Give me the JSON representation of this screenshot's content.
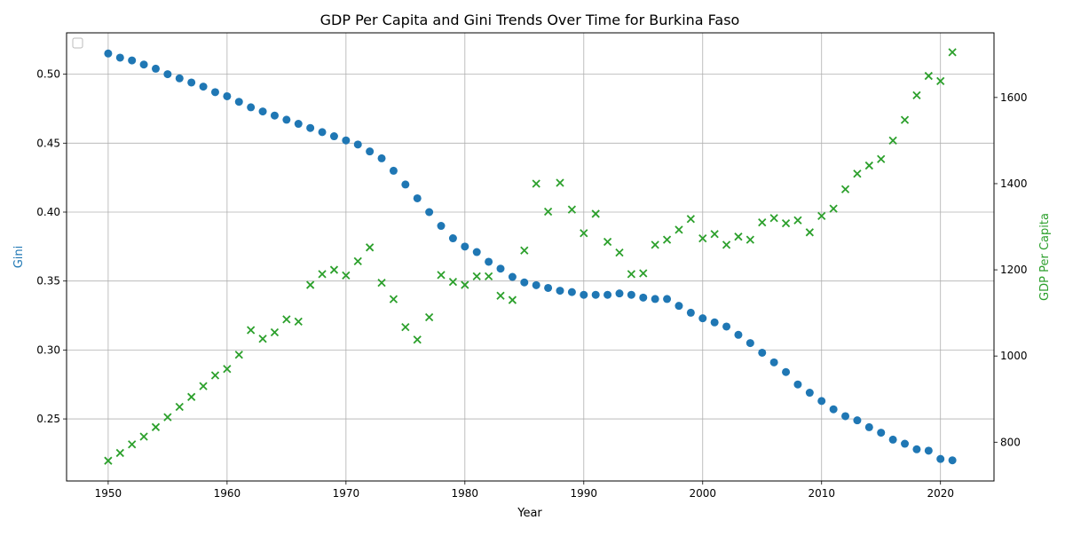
{
  "chart_data": {
    "type": "scatter",
    "title": "GDP Per Capita and Gini Trends Over Time for Burkina Faso",
    "xlabel": "Year",
    "ylabel_left": "Gini",
    "ylabel_right": "GDP Per Capita",
    "xlim": [
      1946.5,
      2024.5
    ],
    "ylim_left": [
      0.205,
      0.53
    ],
    "ylim_right": [
      710,
      1750
    ],
    "x_ticks": [
      1950,
      1960,
      1970,
      1980,
      1990,
      2000,
      2010,
      2020
    ],
    "y_left_ticks": [
      0.25,
      0.3,
      0.35,
      0.4,
      0.45,
      0.5
    ],
    "y_right_ticks": [
      800,
      1000,
      1200,
      1400,
      1600
    ],
    "grid": true,
    "legend": "top-left (empty)",
    "colors": {
      "gini": "#1f77b4",
      "gdp": "#2ca02c"
    },
    "x": [
      1950,
      1951,
      1952,
      1953,
      1954,
      1955,
      1956,
      1957,
      1958,
      1959,
      1960,
      1961,
      1962,
      1963,
      1964,
      1965,
      1966,
      1967,
      1968,
      1969,
      1970,
      1971,
      1972,
      1973,
      1974,
      1975,
      1976,
      1977,
      1978,
      1979,
      1980,
      1981,
      1982,
      1983,
      1984,
      1985,
      1986,
      1987,
      1988,
      1989,
      1990,
      1991,
      1992,
      1993,
      1994,
      1995,
      1996,
      1997,
      1998,
      1999,
      2000,
      2001,
      2002,
      2003,
      2004,
      2005,
      2006,
      2007,
      2008,
      2009,
      2010,
      2011,
      2012,
      2013,
      2014,
      2015,
      2016,
      2017,
      2018,
      2019,
      2020,
      2021
    ],
    "series": [
      {
        "axis": "left",
        "marker": "circle",
        "values": [
          0.515,
          0.512,
          0.51,
          0.507,
          0.504,
          0.5,
          0.497,
          0.494,
          0.491,
          0.487,
          0.484,
          0.48,
          0.476,
          0.473,
          0.47,
          0.467,
          0.464,
          0.461,
          0.458,
          0.455,
          0.452,
          0.449,
          0.444,
          0.439,
          0.43,
          0.42,
          0.41,
          0.4,
          0.39,
          0.381,
          0.375,
          0.371,
          0.364,
          0.359,
          0.353,
          0.349,
          0.347,
          0.345,
          0.343,
          0.342,
          0.34,
          0.34,
          0.34,
          0.341,
          0.34,
          0.338,
          0.337,
          0.337,
          0.332,
          0.327,
          0.323,
          0.32,
          0.317,
          0.311,
          0.305,
          0.298,
          0.291,
          0.284,
          0.275,
          0.269,
          0.263,
          0.257,
          0.252,
          0.249,
          0.244,
          0.24,
          0.235,
          0.232,
          0.228,
          0.227,
          0.221,
          0.22
        ]
      },
      {
        "axis": "right",
        "marker": "x",
        "values": [
          757,
          775,
          795,
          813,
          835,
          858,
          882,
          905,
          930,
          955,
          970,
          1003,
          1060,
          1040,
          1055,
          1085,
          1080,
          1165,
          1190,
          1200,
          1187,
          1220,
          1252,
          1170,
          1132,
          1067,
          1038,
          1090,
          1188,
          1172,
          1165,
          1185,
          1185,
          1140,
          1130,
          1245,
          1400,
          1335,
          1402,
          1340,
          1285,
          1330,
          1265,
          1240,
          1190,
          1192,
          1258,
          1270,
          1293,
          1318,
          1273,
          1283,
          1258,
          1277,
          1270,
          1310,
          1320,
          1308,
          1315,
          1287,
          1325,
          1342,
          1387,
          1423,
          1442,
          1457,
          1500,
          1548,
          1605,
          1650,
          1638,
          1705
        ]
      }
    ]
  }
}
